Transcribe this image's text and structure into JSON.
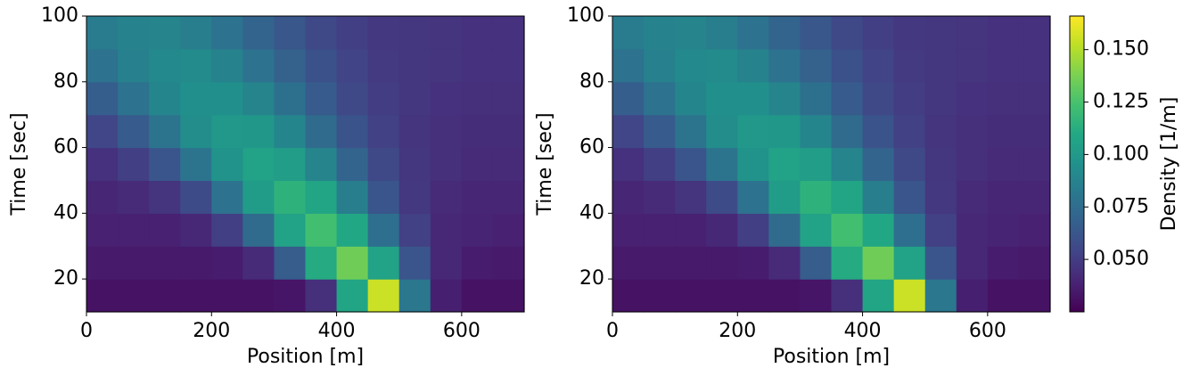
{
  "chart_data": [
    {
      "type": "heatmap",
      "xlabel": "Position [m]",
      "ylabel": "Time [sec]",
      "colormap": "viridis",
      "xlim": [
        0,
        700
      ],
      "xticks": [
        0,
        200,
        400,
        600
      ],
      "ylim": [
        10,
        100
      ],
      "yticks": [
        20,
        40,
        60,
        80,
        100
      ],
      "clim": [
        0.025,
        0.166
      ],
      "x": [
        25,
        75,
        125,
        175,
        225,
        275,
        325,
        375,
        425,
        475,
        525,
        575,
        625,
        675
      ],
      "y": [
        15,
        25,
        35,
        45,
        55,
        65,
        75,
        85,
        95
      ],
      "z": [
        [
          0.032,
          0.032,
          0.032,
          0.032,
          0.032,
          0.032,
          0.033,
          0.044,
          0.108,
          0.155,
          0.081,
          0.037,
          0.032,
          0.032
        ],
        [
          0.035,
          0.035,
          0.035,
          0.035,
          0.036,
          0.042,
          0.066,
          0.111,
          0.135,
          0.106,
          0.062,
          0.041,
          0.036,
          0.035
        ],
        [
          0.038,
          0.038,
          0.038,
          0.041,
          0.051,
          0.074,
          0.106,
          0.123,
          0.109,
          0.076,
          0.052,
          0.041,
          0.039,
          0.038
        ],
        [
          0.04,
          0.042,
          0.046,
          0.057,
          0.078,
          0.102,
          0.115,
          0.108,
          0.085,
          0.062,
          0.048,
          0.042,
          0.04,
          0.04
        ],
        [
          0.045,
          0.051,
          0.062,
          0.079,
          0.097,
          0.106,
          0.103,
          0.088,
          0.07,
          0.056,
          0.047,
          0.044,
          0.042,
          0.042
        ],
        [
          0.054,
          0.065,
          0.079,
          0.093,
          0.1,
          0.099,
          0.089,
          0.074,
          0.061,
          0.052,
          0.046,
          0.044,
          0.043,
          0.043
        ],
        [
          0.067,
          0.078,
          0.089,
          0.095,
          0.095,
          0.088,
          0.077,
          0.065,
          0.056,
          0.05,
          0.047,
          0.045,
          0.044,
          0.044
        ],
        [
          0.078,
          0.086,
          0.091,
          0.092,
          0.087,
          0.078,
          0.069,
          0.06,
          0.053,
          0.049,
          0.047,
          0.046,
          0.045,
          0.045
        ],
        [
          0.083,
          0.087,
          0.088,
          0.085,
          0.078,
          0.07,
          0.063,
          0.056,
          0.051,
          0.048,
          0.047,
          0.046,
          0.045,
          0.045
        ]
      ]
    },
    {
      "type": "heatmap",
      "xlabel": "Position [m]",
      "ylabel": "Time [sec]",
      "colormap": "viridis",
      "xlim": [
        0,
        700
      ],
      "xticks": [
        0,
        200,
        400,
        600
      ],
      "ylim": [
        10,
        100
      ],
      "yticks": [
        20,
        40,
        60,
        80,
        100
      ],
      "clim": [
        0.025,
        0.166
      ],
      "colorbar": {
        "label": "Density [1/m]",
        "ticks": [
          {
            "value": 0.05,
            "label": "0.050"
          },
          0.075,
          {
            "value": 0.1,
            "label": "0.100"
          },
          0.125,
          {
            "value": 0.15,
            "label": "0.150"
          }
        ]
      },
      "x": [
        25,
        75,
        125,
        175,
        225,
        275,
        325,
        375,
        425,
        475,
        525,
        575,
        625,
        675
      ],
      "y": [
        15,
        25,
        35,
        45,
        55,
        65,
        75,
        85,
        95
      ],
      "z": [
        [
          0.032,
          0.032,
          0.032,
          0.032,
          0.032,
          0.032,
          0.033,
          0.044,
          0.108,
          0.155,
          0.081,
          0.037,
          0.032,
          0.032
        ],
        [
          0.035,
          0.035,
          0.035,
          0.035,
          0.036,
          0.042,
          0.066,
          0.111,
          0.135,
          0.106,
          0.062,
          0.041,
          0.036,
          0.035
        ],
        [
          0.038,
          0.038,
          0.038,
          0.041,
          0.051,
          0.074,
          0.106,
          0.123,
          0.109,
          0.076,
          0.052,
          0.041,
          0.039,
          0.038
        ],
        [
          0.04,
          0.042,
          0.046,
          0.057,
          0.078,
          0.102,
          0.115,
          0.108,
          0.085,
          0.062,
          0.048,
          0.042,
          0.04,
          0.04
        ],
        [
          0.045,
          0.051,
          0.062,
          0.079,
          0.097,
          0.106,
          0.103,
          0.088,
          0.07,
          0.056,
          0.047,
          0.044,
          0.042,
          0.042
        ],
        [
          0.054,
          0.065,
          0.079,
          0.093,
          0.1,
          0.099,
          0.089,
          0.074,
          0.061,
          0.052,
          0.046,
          0.044,
          0.043,
          0.043
        ],
        [
          0.067,
          0.078,
          0.089,
          0.095,
          0.095,
          0.088,
          0.077,
          0.065,
          0.056,
          0.05,
          0.047,
          0.045,
          0.044,
          0.044
        ],
        [
          0.078,
          0.086,
          0.091,
          0.092,
          0.087,
          0.078,
          0.069,
          0.06,
          0.053,
          0.049,
          0.047,
          0.046,
          0.045,
          0.045
        ],
        [
          0.083,
          0.087,
          0.088,
          0.085,
          0.078,
          0.07,
          0.063,
          0.056,
          0.051,
          0.048,
          0.047,
          0.046,
          0.045,
          0.045
        ]
      ]
    }
  ]
}
